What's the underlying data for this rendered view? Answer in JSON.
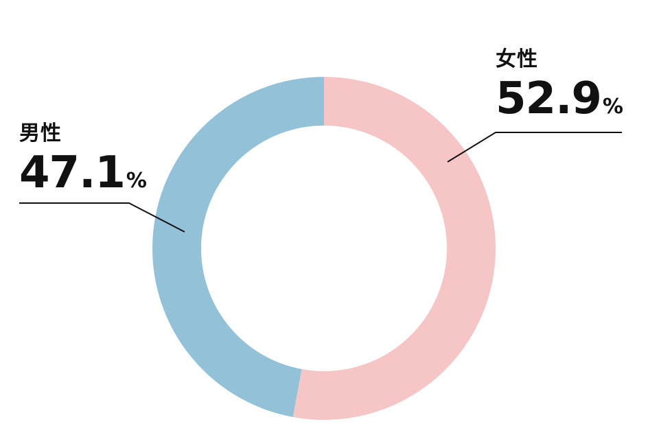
{
  "chart_data": {
    "type": "pie",
    "donut": true,
    "unit": "%",
    "slices": [
      {
        "name": "女性",
        "value": 52.9,
        "color": "#f6c5c5"
      },
      {
        "name": "男性",
        "value": 47.1,
        "color": "#93c2d8"
      }
    ],
    "start_angle_deg": 0,
    "direction": "clockwise",
    "leader_color": "#111111",
    "legend": "callout-labels"
  }
}
